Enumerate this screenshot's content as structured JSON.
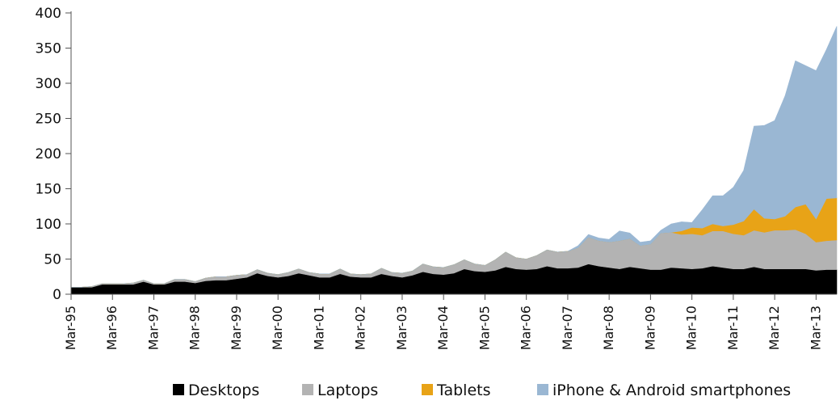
{
  "chart_data": {
    "type": "area",
    "stacked": true,
    "title": "",
    "xlabel": "",
    "ylabel": "",
    "ylim": [
      0,
      400
    ],
    "yticks": [
      0,
      50,
      100,
      150,
      200,
      250,
      300,
      350,
      400
    ],
    "grid": false,
    "legend_position": "bottom",
    "x_tick_labels": [
      "Mar-95",
      "Mar-96",
      "Mar-97",
      "Mar-98",
      "Mar-99",
      "Mar-00",
      "Mar-01",
      "Mar-02",
      "Mar-03",
      "Mar-04",
      "Mar-05",
      "Mar-06",
      "Mar-07",
      "Mar-08",
      "Mar-09",
      "Mar-10",
      "Mar-11",
      "Mar-12",
      "Mar-13"
    ],
    "x_start": 1995.17,
    "x_step": 0.25,
    "series": [
      {
        "name": "Desktops",
        "color": "#000000",
        "values": [
          10,
          10,
          10,
          14,
          14,
          14,
          14,
          18,
          14,
          14,
          18,
          18,
          16,
          19,
          20,
          20,
          22,
          24,
          30,
          26,
          24,
          26,
          30,
          27,
          24,
          24,
          29,
          25,
          24,
          24,
          29,
          26,
          24,
          27,
          32,
          29,
          28,
          30,
          36,
          33,
          32,
          34,
          39,
          36,
          35,
          36,
          40,
          37,
          37,
          38,
          43,
          40,
          38,
          36,
          39,
          37,
          35,
          35,
          38,
          37,
          36,
          37,
          40,
          38,
          36,
          36,
          39,
          36,
          36,
          36,
          36,
          36,
          34,
          35,
          35
        ]
      },
      {
        "name": "Laptops",
        "color": "#b3b3b3",
        "values": [
          0,
          0,
          1,
          1,
          1,
          1,
          2,
          2,
          1,
          1,
          3,
          3,
          2,
          4,
          5,
          5,
          5,
          4,
          5,
          4,
          4,
          5,
          6,
          4,
          5,
          5,
          7,
          4,
          4,
          5,
          8,
          5,
          6,
          6,
          11,
          10,
          10,
          12,
          13,
          10,
          9,
          15,
          21,
          16,
          15,
          19,
          23,
          23,
          24,
          28,
          38,
          36,
          36,
          40,
          40,
          32,
          36,
          52,
          50,
          48,
          50,
          47,
          50,
          52,
          50,
          48,
          52,
          52,
          55,
          55,
          56,
          50,
          40,
          41,
          42
        ]
      },
      {
        "name": "Tablets",
        "color": "#e8a317",
        "values": [
          0,
          0,
          0,
          0,
          0,
          0,
          0,
          0,
          0,
          0,
          0,
          0,
          0,
          0,
          0,
          0,
          0,
          0,
          0,
          0,
          0,
          0,
          0,
          0,
          0,
          0,
          0,
          0,
          0,
          0,
          0,
          0,
          0,
          0,
          0,
          0,
          0,
          0,
          0,
          0,
          0,
          0,
          0,
          0,
          0,
          0,
          0,
          0,
          0,
          0,
          0,
          0,
          0,
          0,
          0,
          0,
          0,
          0,
          0,
          5,
          9,
          10,
          10,
          7,
          13,
          20,
          30,
          20,
          16,
          20,
          32,
          42,
          33,
          60,
          60
        ]
      },
      {
        "name": "iPhone & Android smartphones",
        "color": "#9ab7d3",
        "values": [
          0,
          0,
          0,
          0,
          0,
          0,
          0,
          0,
          0,
          0,
          0,
          0,
          0,
          0,
          0,
          0,
          0,
          0,
          0,
          0,
          0,
          0,
          0,
          0,
          0,
          0,
          0,
          0,
          0,
          0,
          0,
          0,
          0,
          0,
          0,
          0,
          0,
          0,
          0,
          0,
          0,
          0,
          0,
          0,
          0,
          0,
          0,
          0,
          0,
          3,
          4,
          4,
          4,
          14,
          8,
          5,
          5,
          4,
          12,
          13,
          7,
          26,
          40,
          43,
          53,
          72,
          118,
          132,
          140,
          171,
          208,
          197,
          211,
          212,
          244
        ]
      }
    ]
  }
}
